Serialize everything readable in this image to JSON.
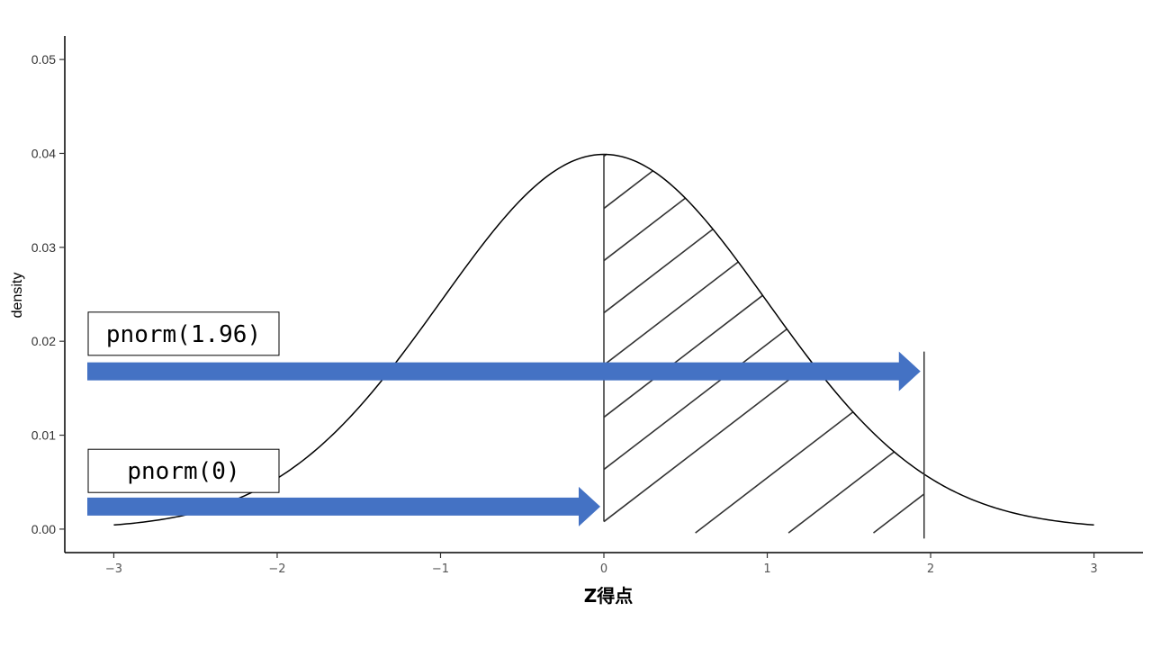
{
  "chart_data": {
    "type": "line",
    "title": "",
    "xlabel": "Z得点",
    "ylabel": "density",
    "xlim": [
      -3.3,
      3.3
    ],
    "ylim": [
      -0.0025,
      0.0525
    ],
    "x_ticks": [
      -3,
      -2,
      -1,
      0,
      1,
      2,
      3
    ],
    "x_tick_labels": [
      "−3",
      "−2",
      "−1",
      "0",
      "1",
      "2",
      "3"
    ],
    "y_ticks": [
      0.0,
      0.01,
      0.02,
      0.03,
      0.04,
      0.05
    ],
    "y_tick_labels": [
      "0.00",
      "0.01",
      "0.02",
      "0.03",
      "0.04",
      "0.05"
    ],
    "grid": false,
    "series": [
      {
        "curve": "normal-density-scaled",
        "mean": 0,
        "sd": 1,
        "peak_density": 0.0399,
        "x_range": [
          -3,
          3
        ],
        "color": "#000000"
      }
    ],
    "shaded_region": {
      "x_from": 0,
      "x_to": 1.96,
      "pattern": "diagonal-hatch"
    },
    "vertical_lines": [
      0,
      1.96
    ],
    "annotations": [
      {
        "text": "pnorm(1.96)",
        "arrow_to_x": 1.96,
        "y_level": 0.0168,
        "label_y": 0.0208
      },
      {
        "text": "pnorm(0)",
        "arrow_to_x": 0,
        "y_level": 0.0024,
        "label_y": 0.0062
      }
    ],
    "arrow_color": "#4472C4"
  }
}
